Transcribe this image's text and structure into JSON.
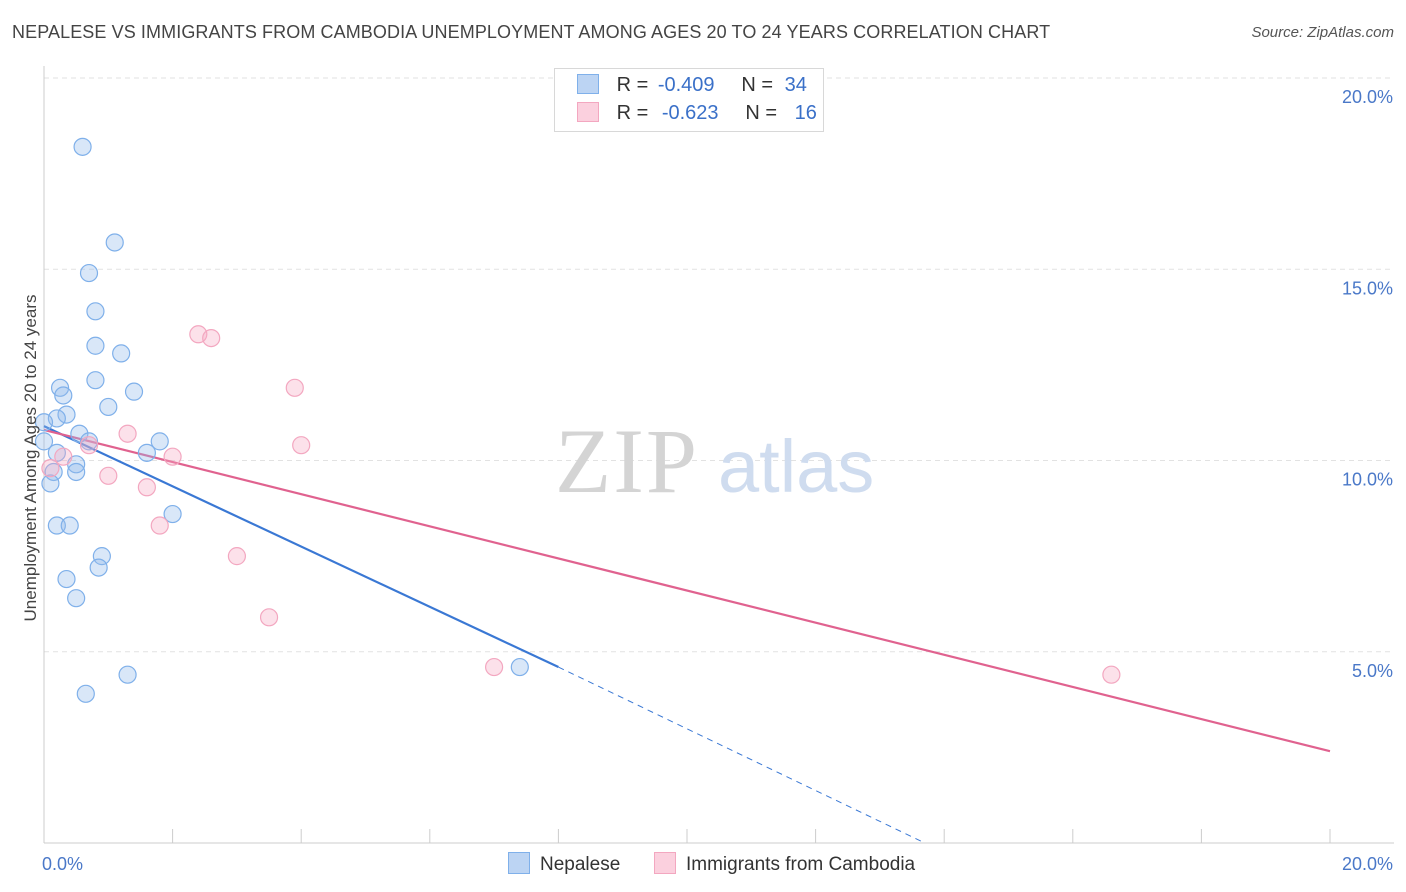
{
  "chart_data": {
    "type": "scatter",
    "title": "NEPALESE VS IMMIGRANTS FROM CAMBODIA UNEMPLOYMENT AMONG AGES 20 TO 24 YEARS CORRELATION CHART",
    "source": "Source: ZipAtlas.com",
    "watermark": "ZIPatlas",
    "ylabel": "Unemployment Among Ages 20 to 24 years",
    "xlim": [
      0,
      20
    ],
    "ylim": [
      0,
      20
    ],
    "x_tick_labels": [
      "0.0%",
      "20.0%"
    ],
    "y_ticks": [
      5,
      10,
      15,
      20
    ],
    "y_tick_labels": [
      "5.0%",
      "10.0%",
      "15.0%",
      "20.0%"
    ],
    "series": [
      {
        "name": "Nepalese",
        "color": "#7fb0ea",
        "line_color": "#3a78d4",
        "r_label": "R =",
        "r_value": "-0.409",
        "n_label": "N =",
        "n_value": "34",
        "points": [
          [
            0.6,
            18.2
          ],
          [
            1.1,
            15.7
          ],
          [
            0.7,
            14.9
          ],
          [
            0.8,
            13.9
          ],
          [
            0.8,
            13.0
          ],
          [
            1.2,
            12.8
          ],
          [
            0.8,
            12.1
          ],
          [
            0.25,
            11.9
          ],
          [
            0.3,
            11.7
          ],
          [
            1.4,
            11.8
          ],
          [
            1.0,
            11.4
          ],
          [
            0.35,
            11.2
          ],
          [
            0.2,
            11.1
          ],
          [
            0.0,
            11.0
          ],
          [
            0.55,
            10.7
          ],
          [
            0.7,
            10.5
          ],
          [
            1.8,
            10.5
          ],
          [
            0.0,
            10.5
          ],
          [
            1.6,
            10.2
          ],
          [
            0.5,
            9.9
          ],
          [
            0.5,
            9.7
          ],
          [
            0.15,
            9.7
          ],
          [
            0.1,
            9.4
          ],
          [
            2.0,
            8.6
          ],
          [
            0.2,
            8.3
          ],
          [
            0.4,
            8.3
          ],
          [
            0.9,
            7.5
          ],
          [
            0.85,
            7.2
          ],
          [
            0.35,
            6.9
          ],
          [
            0.5,
            6.4
          ],
          [
            7.4,
            4.6
          ],
          [
            1.3,
            4.4
          ],
          [
            0.65,
            3.9
          ],
          [
            0.2,
            10.2
          ]
        ],
        "trend": {
          "x0": 0.0,
          "y0": 10.9,
          "x1": 8.0,
          "y1": 4.6
        },
        "trend_dashed": {
          "x0": 8.0,
          "y0": 4.6,
          "x1": 13.7,
          "y1": 0.0
        }
      },
      {
        "name": "Immigrants from Cambodia",
        "color": "#f3a7c0",
        "line_color": "#e0628f",
        "r_label": "R =",
        "r_value": "-0.623",
        "n_label": "N =",
        "n_value": "16",
        "points": [
          [
            2.4,
            13.3
          ],
          [
            2.6,
            13.2
          ],
          [
            3.9,
            11.9
          ],
          [
            1.3,
            10.7
          ],
          [
            0.7,
            10.4
          ],
          [
            4.0,
            10.4
          ],
          [
            2.0,
            10.1
          ],
          [
            0.3,
            10.1
          ],
          [
            1.0,
            9.6
          ],
          [
            1.6,
            9.3
          ],
          [
            1.8,
            8.3
          ],
          [
            3.0,
            7.5
          ],
          [
            3.5,
            5.9
          ],
          [
            7.0,
            4.6
          ],
          [
            16.6,
            4.4
          ],
          [
            0.1,
            9.8
          ]
        ],
        "trend": {
          "x0": 0.0,
          "y0": 10.8,
          "x1": 20.0,
          "y1": 2.4
        }
      }
    ]
  }
}
